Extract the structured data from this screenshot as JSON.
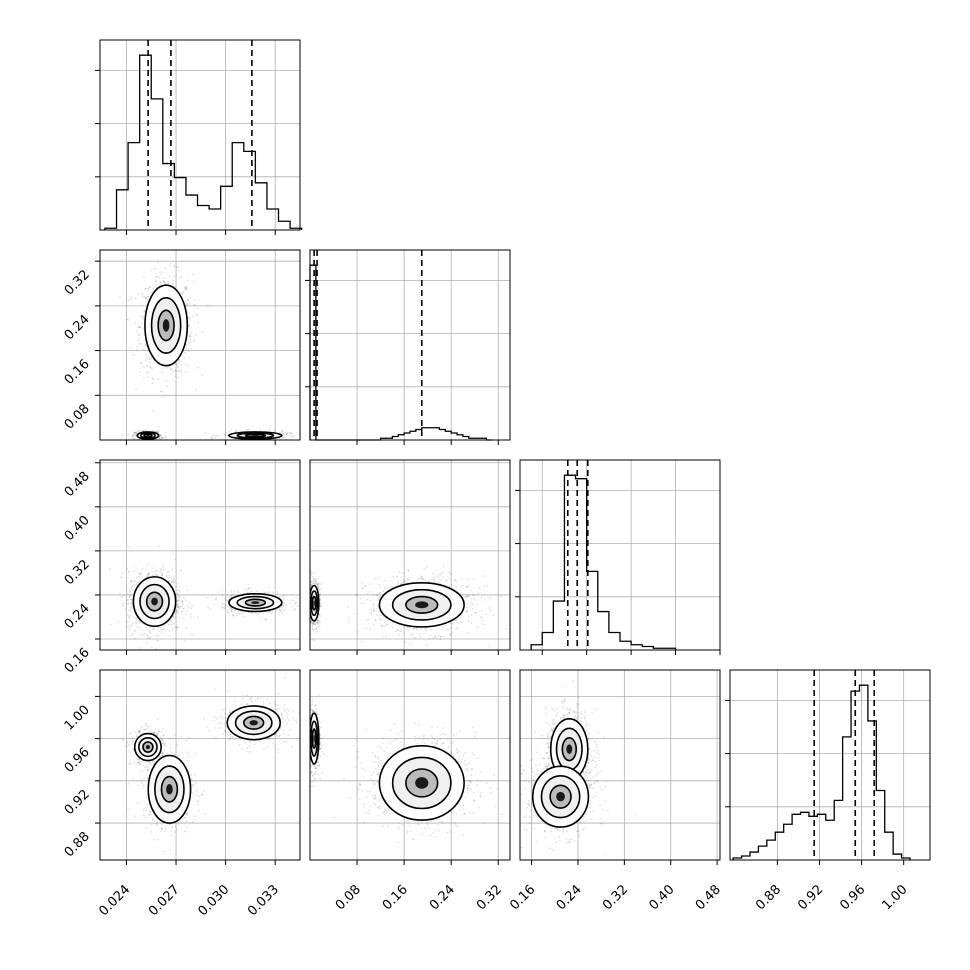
{
  "chart_data": {
    "type": "corner",
    "grid": true,
    "parameters": [
      {
        "ticks": [
          0.024,
          0.027,
          0.03,
          0.033
        ],
        "tick_labels": [
          "0.024",
          "0.027",
          "0.030",
          "0.033"
        ]
      },
      {
        "ticks": [
          0.08,
          0.16,
          0.24,
          0.32
        ],
        "tick_labels": [
          "0.08",
          "0.16",
          "0.24",
          "0.32"
        ]
      },
      {
        "ticks": [
          0.16,
          0.24,
          0.32,
          0.4,
          0.48
        ],
        "tick_labels": [
          "0.16",
          "0.24",
          "0.32",
          "0.40",
          "0.48"
        ]
      },
      {
        "ticks": [
          0.88,
          0.92,
          0.96,
          1.0
        ],
        "tick_labels": [
          "0.88",
          "0.92",
          "0.96",
          "1.00"
        ]
      }
    ],
    "diagonal": [
      {
        "parameter": 0,
        "x_range": [
          0.0224,
          0.0345
        ],
        "bin_edges": [
          0.0227,
          0.0234,
          0.0241,
          0.0248,
          0.0255,
          0.0262,
          0.0269,
          0.0276,
          0.0283,
          0.029,
          0.0297,
          0.0304,
          0.0311,
          0.0318,
          0.0325,
          0.0332,
          0.0339,
          0.0346
        ],
        "counts": [
          1,
          23,
          50,
          100,
          75,
          38,
          30,
          20,
          14,
          12,
          25,
          50,
          45,
          27,
          12,
          5,
          1
        ],
        "quantiles": [
          0.02531,
          0.02669,
          0.03159
        ]
      },
      {
        "parameter": 1,
        "x_range": [
          0.0,
          0.34
        ],
        "bin_edges": [
          0.0,
          0.01,
          0.02,
          0.03,
          0.04,
          0.05,
          0.06,
          0.07,
          0.08,
          0.09,
          0.1,
          0.11,
          0.12,
          0.13,
          0.14,
          0.15,
          0.16,
          0.17,
          0.18,
          0.19,
          0.2,
          0.21,
          0.22,
          0.23,
          0.24,
          0.25,
          0.26,
          0.27,
          0.28,
          0.29,
          0.3,
          0.31
        ],
        "counts": [
          100,
          0,
          0,
          0,
          0,
          0,
          0,
          0,
          0,
          0,
          0,
          0,
          1,
          1,
          2,
          3,
          4,
          5,
          6,
          7,
          7,
          7,
          6,
          5,
          4,
          3,
          2,
          1,
          1,
          1,
          0
        ],
        "quantiles": [
          0.007,
          0.012,
          0.19
        ]
      },
      {
        "parameter": 2,
        "x_range": [
          0.12,
          0.48
        ],
        "bin_edges": [
          0.14,
          0.16,
          0.18,
          0.2,
          0.22,
          0.24,
          0.26,
          0.28,
          0.3,
          0.32,
          0.34,
          0.36,
          0.38,
          0.4
        ],
        "counts": [
          3,
          10,
          28,
          100,
          98,
          45,
          22,
          10,
          5,
          3,
          2,
          1,
          1
        ],
        "quantiles": [
          0.206,
          0.223,
          0.242
        ]
      },
      {
        "parameter": 3,
        "x_range": [
          0.835,
          1.025
        ],
        "bin_edges": [
          0.838,
          0.846,
          0.854,
          0.862,
          0.87,
          0.878,
          0.886,
          0.894,
          0.902,
          0.91,
          0.918,
          0.926,
          0.934,
          0.942,
          0.95,
          0.958,
          0.966,
          0.974,
          0.982,
          0.99,
          0.998,
          1.006
        ],
        "counts": [
          1,
          2,
          4,
          7,
          10,
          14,
          18,
          23,
          24,
          22,
          23,
          20,
          30,
          62,
          85,
          88,
          70,
          35,
          14,
          3,
          1
        ],
        "quantiles": [
          0.915,
          0.954,
          0.972
        ]
      }
    ],
    "pairs": [
      {
        "x_param": 0,
        "y_param": 1,
        "x_range": [
          0.0224,
          0.0345
        ],
        "y_range": [
          0.0,
          0.34
        ],
        "clusters": [
          {
            "center": [
              0.0264,
              0.205
            ],
            "spread": [
              0.0008,
              0.045
            ],
            "weight": 0.55
          },
          {
            "center": [
              0.0253,
              0.008
            ],
            "spread": [
              0.0004,
              0.004
            ],
            "weight": 0.25
          },
          {
            "center": [
              0.0318,
              0.008
            ],
            "spread": [
              0.001,
              0.004
            ],
            "weight": 0.2
          }
        ]
      },
      {
        "x_param": 0,
        "y_param": 2,
        "x_range": [
          0.0224,
          0.0345
        ],
        "y_range": [
          0.14,
          0.485
        ],
        "clusters": [
          {
            "center": [
              0.0257,
              0.228
            ],
            "spread": [
              0.0008,
              0.028
            ],
            "weight": 0.65
          },
          {
            "center": [
              0.0318,
              0.226
            ],
            "spread": [
              0.001,
              0.01
            ],
            "weight": 0.35
          }
        ]
      },
      {
        "x_param": 1,
        "y_param": 2,
        "x_range": [
          0.0,
          0.34
        ],
        "y_range": [
          0.14,
          0.485
        ],
        "clusters": [
          {
            "center": [
              0.19,
              0.222
            ],
            "spread": [
              0.045,
              0.025
            ],
            "weight": 0.6
          },
          {
            "center": [
              0.007,
              0.225
            ],
            "spread": [
              0.005,
              0.02
            ],
            "weight": 0.4
          }
        ]
      },
      {
        "x_param": 0,
        "y_param": 3,
        "x_range": [
          0.0224,
          0.0345
        ],
        "y_range": [
          0.845,
          1.025
        ],
        "clusters": [
          {
            "center": [
              0.0253,
              0.952
            ],
            "spread": [
              0.0005,
              0.008
            ],
            "weight": 0.3
          },
          {
            "center": [
              0.0266,
              0.912
            ],
            "spread": [
              0.0008,
              0.02
            ],
            "weight": 0.35
          },
          {
            "center": [
              0.0317,
              0.975
            ],
            "spread": [
              0.001,
              0.01
            ],
            "weight": 0.35
          }
        ]
      },
      {
        "x_param": 1,
        "y_param": 3,
        "x_range": [
          0.0,
          0.34
        ],
        "y_range": [
          0.845,
          1.025
        ],
        "clusters": [
          {
            "center": [
              0.19,
              0.918
            ],
            "spread": [
              0.045,
              0.022
            ],
            "weight": 0.6
          },
          {
            "center": [
              0.007,
              0.96
            ],
            "spread": [
              0.005,
              0.015
            ],
            "weight": 0.4
          }
        ]
      },
      {
        "x_param": 2,
        "y_param": 3,
        "x_range": [
          0.14,
          0.485
        ],
        "y_range": [
          0.845,
          1.025
        ],
        "clusters": [
          {
            "center": [
              0.225,
              0.95
            ],
            "spread": [
              0.02,
              0.018
            ],
            "weight": 0.55
          },
          {
            "center": [
              0.21,
              0.905
            ],
            "spread": [
              0.03,
              0.018
            ],
            "weight": 0.45
          }
        ]
      }
    ]
  }
}
